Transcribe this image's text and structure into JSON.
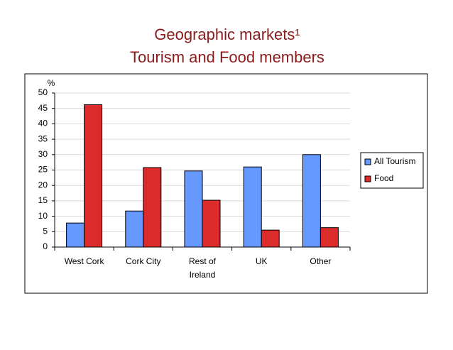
{
  "chart_data": {
    "type": "bar",
    "title": "Geographic markets¹",
    "subtitle": "Tourism and Food members",
    "y_label": "%",
    "categories": [
      "West Cork",
      "Cork City",
      "Rest of Ireland",
      "UK",
      "Other"
    ],
    "series": [
      {
        "name": "All Tourism",
        "color": "#6699ff",
        "values": [
          7.8,
          11.7,
          24.7,
          26,
          30
        ]
      },
      {
        "name": "Food",
        "color": "#dd2a2a",
        "values": [
          46.2,
          25.8,
          15.2,
          5.5,
          6.3
        ]
      }
    ],
    "ylim": [
      0,
      50
    ],
    "yticks": [
      0,
      5,
      10,
      15,
      20,
      25,
      30,
      35,
      40,
      45,
      50
    ],
    "grid": true,
    "legend": "right"
  }
}
